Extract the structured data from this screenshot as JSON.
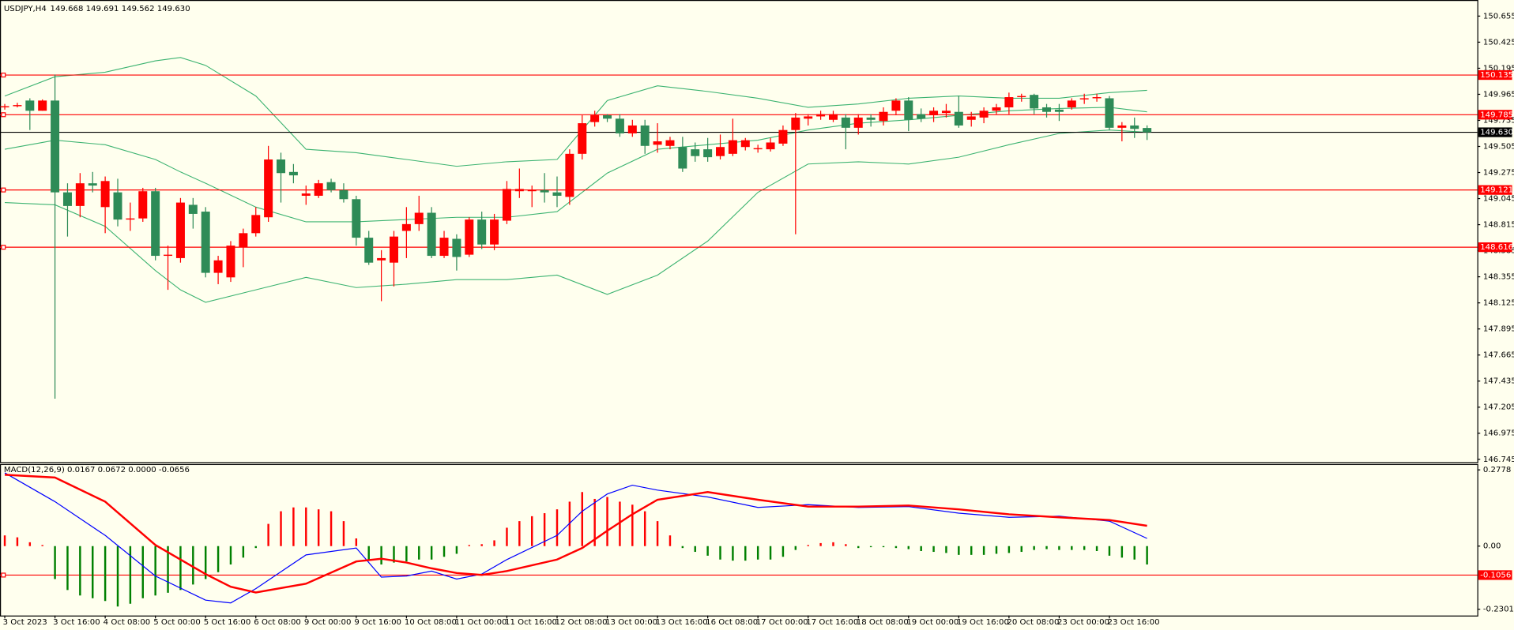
{
  "chart_data": [
    {
      "type": "candlestick",
      "title": "USDJPY,H4",
      "subtitle": "149.668 149.691 149.562 149.630",
      "up_color": "#ff0000",
      "down_color": "#2e8b57",
      "band_color": "#3cb371",
      "xlim": [
        -0.38,
        117.31
      ],
      "ylim": [
        146.72,
        150.78
      ],
      "yticks": [
        150.655,
        150.425,
        150.195,
        149.965,
        149.735,
        149.505,
        149.275,
        149.045,
        148.815,
        148.585,
        148.355,
        148.125,
        147.895,
        147.665,
        147.435,
        147.205,
        146.975,
        146.745
      ],
      "open": [
        149.85,
        149.86,
        149.91,
        149.82,
        149.91,
        149.1,
        148.98,
        149.18,
        148.97,
        149.1,
        148.86,
        148.87,
        149.11,
        148.54,
        148.52,
        148.99,
        148.93,
        148.39,
        148.35,
        148.62,
        148.74,
        148.88,
        149.39,
        149.28,
        149.07,
        149.07,
        149.19,
        149.12,
        149.04,
        148.7,
        148.5,
        148.48,
        148.76,
        148.82,
        148.92,
        148.54,
        148.69,
        148.55,
        148.86,
        148.64,
        148.85,
        149.11,
        149.11,
        149.12,
        149.1,
        149.06,
        149.44,
        149.72,
        149.78,
        149.75,
        149.62,
        149.69,
        149.52,
        149.51,
        149.5,
        149.48,
        149.48,
        149.42,
        149.44,
        149.5,
        149.48,
        149.48,
        149.53,
        149.65,
        149.75,
        149.77,
        149.74,
        149.76,
        149.67,
        149.76,
        149.73,
        149.82,
        149.91,
        149.79,
        149.78,
        149.8,
        149.81,
        149.74,
        149.76,
        149.82,
        149.85,
        149.94,
        149.96,
        149.85,
        149.83,
        149.85,
        149.92,
        149.93,
        149.93,
        149.67,
        149.69,
        149.668
      ],
      "high": [
        149.88,
        149.89,
        149.93,
        149.92,
        150.14,
        149.18,
        149.27,
        149.28,
        149.24,
        149.22,
        149.01,
        149.14,
        149.14,
        148.63,
        149.05,
        149.05,
        148.97,
        148.54,
        148.67,
        148.78,
        148.97,
        149.51,
        149.45,
        149.35,
        149.16,
        149.21,
        149.22,
        149.18,
        149.07,
        148.76,
        148.59,
        148.76,
        148.97,
        149.07,
        148.97,
        148.76,
        148.73,
        148.88,
        148.93,
        148.91,
        149.2,
        149.31,
        149.16,
        149.27,
        149.24,
        149.48,
        149.78,
        149.82,
        149.79,
        149.79,
        149.74,
        149.74,
        149.71,
        149.59,
        149.59,
        149.54,
        149.58,
        149.61,
        149.75,
        149.58,
        149.52,
        149.58,
        149.69,
        149.8,
        149.79,
        149.82,
        149.82,
        149.79,
        149.79,
        149.79,
        149.85,
        149.93,
        149.94,
        149.84,
        149.85,
        149.88,
        149.95,
        149.81,
        149.85,
        149.88,
        149.98,
        149.97,
        149.97,
        149.88,
        149.88,
        149.93,
        149.97,
        149.97,
        149.95,
        149.72,
        149.76,
        149.691
      ],
      "low": [
        149.83,
        149.85,
        149.65,
        149.82,
        147.28,
        148.71,
        148.88,
        149.1,
        148.74,
        148.8,
        148.76,
        148.84,
        148.5,
        148.24,
        148.48,
        148.78,
        148.35,
        148.29,
        148.31,
        148.44,
        148.71,
        148.84,
        149.01,
        149.18,
        148.99,
        149.05,
        149.1,
        149.01,
        148.63,
        148.46,
        148.14,
        148.27,
        148.52,
        148.76,
        148.52,
        148.52,
        148.41,
        148.53,
        148.6,
        148.59,
        148.82,
        149.05,
        148.97,
        149.01,
        148.97,
        148.99,
        149.39,
        149.68,
        149.72,
        149.59,
        149.59,
        149.44,
        149.45,
        149.48,
        149.28,
        149.37,
        149.37,
        149.39,
        149.42,
        149.47,
        149.45,
        149.46,
        149.51,
        148.73,
        149.69,
        149.74,
        149.72,
        149.48,
        149.61,
        149.68,
        149.69,
        149.78,
        149.64,
        149.72,
        149.72,
        149.76,
        149.67,
        149.68,
        149.71,
        149.79,
        149.79,
        149.9,
        149.79,
        149.76,
        149.73,
        149.83,
        149.88,
        149.9,
        149.65,
        149.55,
        149.58,
        149.562
      ],
      "close": [
        149.86,
        149.87,
        149.82,
        149.91,
        149.1,
        148.98,
        149.18,
        149.16,
        149.2,
        148.86,
        148.87,
        149.11,
        148.54,
        148.55,
        149.01,
        148.91,
        148.39,
        148.5,
        148.63,
        148.74,
        148.9,
        149.39,
        149.27,
        149.25,
        149.09,
        149.18,
        149.12,
        149.04,
        148.7,
        148.48,
        148.52,
        148.71,
        148.82,
        148.92,
        148.54,
        148.7,
        148.53,
        148.86,
        148.64,
        148.86,
        149.13,
        149.13,
        149.12,
        149.1,
        149.07,
        149.44,
        149.71,
        149.78,
        149.75,
        149.62,
        149.69,
        149.51,
        149.55,
        149.56,
        149.31,
        149.42,
        149.41,
        149.5,
        149.56,
        149.56,
        149.49,
        149.54,
        149.65,
        149.76,
        149.77,
        149.79,
        149.79,
        149.67,
        149.76,
        149.74,
        149.81,
        149.91,
        149.74,
        149.75,
        149.82,
        149.82,
        149.69,
        149.77,
        149.82,
        149.85,
        149.94,
        149.95,
        149.84,
        149.81,
        149.81,
        149.91,
        149.93,
        149.94,
        149.67,
        149.69,
        149.66,
        149.63
      ],
      "bands": {
        "x": [
          0,
          4,
          8,
          12,
          14,
          16,
          20,
          24,
          28,
          32,
          36,
          40,
          44,
          48,
          52,
          56,
          60,
          64,
          68,
          72,
          76,
          80,
          84,
          88,
          91
        ],
        "upper": [
          149.95,
          150.12,
          150.16,
          150.26,
          150.29,
          150.22,
          149.95,
          149.48,
          149.45,
          149.39,
          149.33,
          149.37,
          149.39,
          149.91,
          150.04,
          149.99,
          149.93,
          149.85,
          149.88,
          149.93,
          149.95,
          149.93,
          149.93,
          149.98,
          150.0
        ],
        "middle": [
          149.48,
          149.56,
          149.52,
          149.39,
          149.28,
          149.18,
          148.97,
          148.84,
          148.84,
          148.86,
          148.88,
          148.88,
          148.93,
          149.27,
          149.48,
          149.52,
          149.56,
          149.65,
          149.71,
          149.74,
          149.78,
          149.82,
          149.84,
          149.85,
          149.81
        ],
        "lower": [
          149.01,
          148.99,
          148.8,
          148.41,
          148.24,
          148.13,
          148.24,
          148.35,
          148.26,
          148.29,
          148.33,
          148.33,
          148.37,
          148.2,
          148.37,
          148.67,
          149.1,
          149.35,
          149.37,
          149.35,
          149.41,
          149.52,
          149.62,
          149.65,
          149.63
        ]
      },
      "levels": [
        150.135,
        149.785,
        149.121,
        148.616
      ],
      "level_color": "#ff0000",
      "current": {
        "value": 149.63,
        "label": "149.630"
      },
      "current_color": "#000000"
    },
    {
      "type": "macd",
      "title": "MACD(12,26,9) 0.0167 0.0672 0.0000 -0.0656",
      "xlim": [
        -0.38,
        117.31
      ],
      "ylim": [
        -0.253,
        0.299
      ],
      "yticks": [
        0.2778,
        {
          "value": 0,
          "label": "0.00"
        },
        -0.2301
      ],
      "levels": [
        -0.1056
      ],
      "level_color": "#ff0000",
      "xticks": [
        {
          "value": 0,
          "label": "3 Oct 2023"
        },
        {
          "value": 4,
          "label": "3 Oct 16:00"
        },
        {
          "value": 8,
          "label": "4 Oct 08:00"
        },
        {
          "value": 12,
          "label": "5 Oct 00:00"
        },
        {
          "value": 16,
          "label": "5 Oct 16:00"
        },
        {
          "value": 20,
          "label": "6 Oct 08:00"
        },
        {
          "value": 24,
          "label": "9 Oct 00:00"
        },
        {
          "value": 28,
          "label": "9 Oct 16:00"
        },
        {
          "value": 32,
          "label": "10 Oct 08:00"
        },
        {
          "value": 36,
          "label": "11 Oct 00:00"
        },
        {
          "value": 40,
          "label": "11 Oct 16:00"
        },
        {
          "value": 44,
          "label": "12 Oct 08:00"
        },
        {
          "value": 48,
          "label": "13 Oct 00:00"
        },
        {
          "value": 52,
          "label": "13 Oct 16:00"
        },
        {
          "value": 56,
          "label": "16 Oct 08:00"
        },
        {
          "value": 60,
          "label": "17 Oct 00:00"
        },
        {
          "value": 64,
          "label": "17 Oct 16:00"
        },
        {
          "value": 68,
          "label": "18 Oct 08:00"
        },
        {
          "value": 72,
          "label": "19 Oct 00:00"
        },
        {
          "value": 76,
          "label": "19 Oct 16:00"
        },
        {
          "value": 80,
          "label": "20 Oct 08:00"
        },
        {
          "value": 84,
          "label": "23 Oct 00:00"
        },
        {
          "value": 88,
          "label": "23 Oct 16:00"
        }
      ],
      "histogram": [
        0.039,
        0.032,
        0.014,
        0.004,
        -0.12,
        -0.16,
        -0.18,
        -0.19,
        -0.2,
        -0.22,
        -0.21,
        -0.19,
        -0.18,
        -0.17,
        -0.16,
        -0.14,
        -0.12,
        -0.095,
        -0.067,
        -0.042,
        -0.007,
        0.081,
        0.127,
        0.141,
        0.141,
        0.134,
        0.127,
        0.091,
        0.028,
        -0.049,
        -0.067,
        -0.06,
        -0.056,
        -0.049,
        -0.049,
        -0.039,
        -0.028,
        0.004,
        0.007,
        0.021,
        0.067,
        0.091,
        0.109,
        0.12,
        0.134,
        0.162,
        0.197,
        0.172,
        0.179,
        0.162,
        0.151,
        0.127,
        0.091,
        0.039,
        -0.007,
        -0.021,
        -0.035,
        -0.049,
        -0.053,
        -0.053,
        -0.049,
        -0.049,
        -0.039,
        -0.014,
        0.004,
        0.011,
        0.014,
        0.007,
        -0.007,
        -0.004,
        -0.004,
        -0.007,
        -0.011,
        -0.018,
        -0.021,
        -0.025,
        -0.032,
        -0.032,
        -0.032,
        -0.028,
        -0.025,
        -0.021,
        -0.014,
        -0.011,
        -0.014,
        -0.014,
        -0.014,
        -0.018,
        -0.035,
        -0.042,
        -0.049,
        -0.067
      ],
      "positive_color": "#ff0000",
      "negative_color": "#008000",
      "lines_x": [
        0,
        4,
        8,
        12,
        16,
        18,
        20,
        24,
        28,
        30,
        32,
        34,
        36,
        38,
        40,
        44,
        46,
        48,
        50,
        52,
        56,
        60,
        64,
        68,
        72,
        76,
        80,
        84,
        88,
        91
      ],
      "macd": {
        "color": "#0000ff",
        "values": [
          0.267,
          0.162,
          0.039,
          -0.109,
          -0.197,
          -0.207,
          -0.155,
          -0.032,
          -0.007,
          -0.113,
          -0.109,
          -0.091,
          -0.12,
          -0.102,
          -0.049,
          0.039,
          0.127,
          0.19,
          0.222,
          0.204,
          0.179,
          0.141,
          0.151,
          0.141,
          0.144,
          0.12,
          0.105,
          0.109,
          0.091,
          0.028
        ]
      },
      "signal": {
        "color": "#ff0000",
        "values": [
          0.26,
          0.25,
          0.162,
          0.004,
          -0.102,
          -0.148,
          -0.169,
          -0.137,
          -0.056,
          -0.046,
          -0.06,
          -0.081,
          -0.098,
          -0.105,
          -0.091,
          -0.049,
          -0.007,
          0.056,
          0.116,
          0.169,
          0.197,
          0.169,
          0.144,
          0.144,
          0.148,
          0.134,
          0.116,
          0.105,
          0.095,
          0.074
        ]
      }
    }
  ]
}
